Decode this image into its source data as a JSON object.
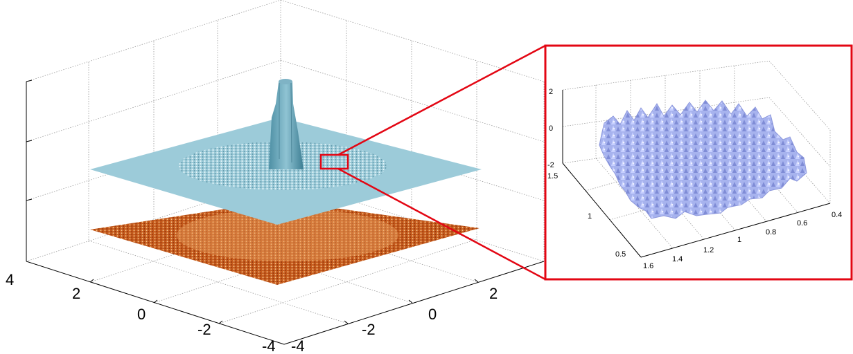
{
  "chart_data": [
    {
      "type": "surface3d",
      "description_layers": [
        "blue surface plane with central peak",
        "orange surface plane"
      ],
      "x_ticks": [
        "-4",
        "-2",
        "0",
        "2",
        "4"
      ],
      "y_ticks": [
        "4",
        "2",
        "0",
        "-2",
        "-4"
      ],
      "xlim": [
        -4,
        4
      ],
      "ylim": [
        -4,
        4
      ],
      "grid": true,
      "colors": {
        "upper_surface": "#9ccbd9",
        "lower_surface": "#c55a1c"
      }
    },
    {
      "type": "surface3d",
      "x_ticks": [
        "0.4",
        "0.6",
        "0.8",
        "1",
        "1.2",
        "1.4",
        "1.6"
      ],
      "y_ticks": [
        "0.5",
        "1",
        "1.5"
      ],
      "z_ticks": [
        "-2",
        "0",
        "2"
      ],
      "xlim": [
        0.4,
        1.6
      ],
      "ylim": [
        0.5,
        1.5
      ],
      "zlim": [
        -2,
        2
      ],
      "grid": true,
      "colors": {
        "surface": "#a7b3ee",
        "frame": "#e30613"
      }
    }
  ]
}
